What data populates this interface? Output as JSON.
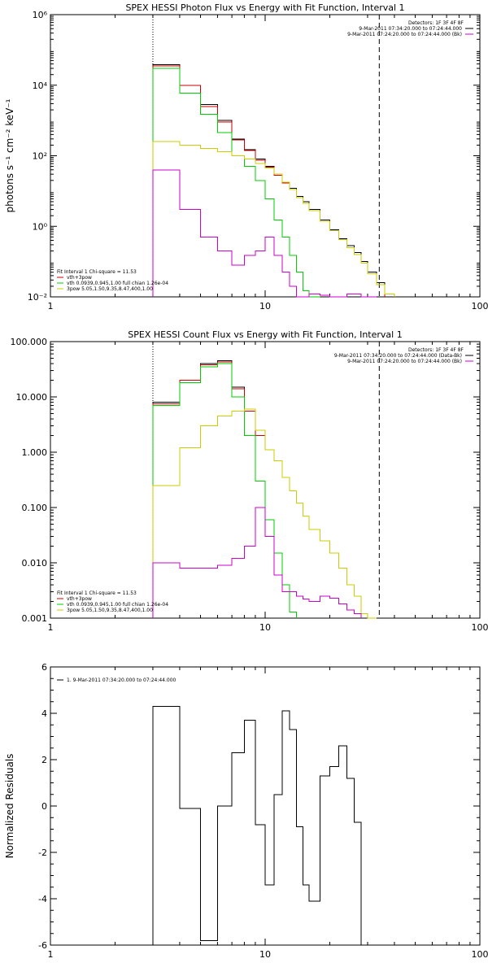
{
  "chart_data": [
    {
      "type": "line",
      "title": "SPEX HESSI Photon Flux vs Energy with Fit Function, Interval 1",
      "ylabel": "photons s⁻¹ cm⁻² keV⁻¹",
      "xlabel": "",
      "xscale": "log",
      "yscale": "log",
      "xlim": [
        1,
        100
      ],
      "ylim": [
        0.01,
        1000000
      ],
      "x_ticks": [
        1,
        10,
        100
      ],
      "x_tick_labels": [
        "1",
        "10",
        "100"
      ],
      "y_ticks": [
        0.01,
        1,
        100,
        10000,
        1000000
      ],
      "y_tick_labels": [
        "10⁻²",
        "10⁰",
        "10²",
        "10⁴",
        "10⁶"
      ],
      "vlines": [
        {
          "x": 3,
          "style": "dotted"
        },
        {
          "x": 34,
          "style": "dashed"
        }
      ],
      "detectors_label": "Detectors: 1F 3F 4F 8F",
      "legend_right": [
        {
          "text": "9-Mar-2011 07:34:20.000 to 07:24:44.000",
          "color": "#000000"
        },
        {
          "text": "9-Mar-2011 07:24:20.000 to 07:24:44.000 (Bk)",
          "color": "#cc00cc"
        }
      ],
      "legend_left": [
        {
          "text": "Fit Interval 1    Chi-square = 11.53",
          "color": "#000000"
        },
        {
          "text": "vth+3pow",
          "color": "#cc0000"
        },
        {
          "text": "vth 0.0939,0.945,1.00  full chian 1.26e-04",
          "color": "#00cc00"
        },
        {
          "text": "3pow 5.05,1.50,9.35,8.47,400,1.00",
          "color": "#cccc00"
        }
      ],
      "edges": [
        3.0,
        3.5,
        4.0,
        4.5,
        5.0,
        5.5,
        6.0,
        6.5,
        7.0,
        7.5,
        8.0,
        8.5,
        9.0,
        9.5,
        10.0,
        11.0,
        12.0,
        13.0,
        14.0,
        15.0,
        16.0,
        18.0,
        20.0,
        22.0,
        24.0,
        26.0,
        28.0,
        30.0,
        33.0,
        36.0,
        40.0
      ],
      "series": [
        {
          "color": "#000000",
          "values": [
            38000,
            38000,
            10000,
            10000,
            2800,
            2800,
            1000,
            1000,
            300,
            300,
            150,
            150,
            80,
            80,
            50,
            30,
            18,
            12,
            7,
            5,
            3,
            1.5,
            0.8,
            0.45,
            0.28,
            0.18,
            0.1,
            0.05,
            0.025,
            null
          ]
        },
        {
          "color": "#cc0000",
          "values": [
            35000,
            35000,
            10000,
            10000,
            2500,
            2500,
            900,
            900,
            280,
            280,
            140,
            140,
            75,
            75,
            48,
            28,
            17,
            11,
            6.5,
            4.5,
            2.8,
            1.4,
            0.75,
            0.42,
            0.25,
            0.16,
            0.09,
            0.045,
            0.022,
            null
          ]
        },
        {
          "color": "#00cc00",
          "values": [
            30000,
            30000,
            6000,
            6000,
            1500,
            1500,
            450,
            450,
            100,
            100,
            50,
            50,
            20,
            20,
            6,
            1.5,
            0.5,
            0.15,
            0.05,
            0.015,
            0.005,
            null,
            null,
            null,
            null,
            null,
            null,
            null,
            null,
            null
          ]
        },
        {
          "color": "#cccc00",
          "values": [
            250,
            250,
            200,
            200,
            160,
            160,
            130,
            130,
            100,
            100,
            80,
            80,
            60,
            60,
            45,
            30,
            18,
            11,
            6.5,
            4.5,
            2.8,
            1.4,
            0.75,
            0.42,
            0.25,
            0.16,
            0.09,
            0.045,
            0.022,
            0.012
          ]
        },
        {
          "color": "#cc00cc",
          "values": [
            40,
            40,
            3,
            3,
            0.5,
            0.5,
            0.2,
            0.2,
            0.08,
            0.08,
            0.15,
            0.15,
            0.2,
            0.2,
            0.5,
            0.15,
            0.05,
            0.02,
            0.01,
            0.01,
            0.012,
            0.011,
            0.01,
            0.009,
            0.012,
            0.012,
            0.01,
            0.008,
            null,
            null
          ]
        }
      ]
    },
    {
      "type": "line",
      "title": "SPEX HESSI Count Flux vs Energy with Fit Function, Interval 1",
      "ylabel": "",
      "xlabel": "",
      "xscale": "log",
      "yscale": "log",
      "xlim": [
        1,
        100
      ],
      "ylim": [
        0.001,
        100
      ],
      "x_ticks": [
        1,
        10,
        100
      ],
      "x_tick_labels": [
        "1",
        "10",
        "100"
      ],
      "y_ticks": [
        0.001,
        0.01,
        0.1,
        1,
        10,
        100
      ],
      "y_tick_labels": [
        "0.001",
        "0.010",
        "0.100",
        "1.000",
        "10.000",
        "100.000"
      ],
      "vlines": [
        {
          "x": 3,
          "style": "dotted"
        },
        {
          "x": 34,
          "style": "dashed"
        }
      ],
      "detectors_label": "Detectors: 1F 3F 4F 8F",
      "legend_right": [
        {
          "text": "9-Mar-2011 07:34:20.000 to 07:24:44.000 (Data-Bk)",
          "color": "#000000"
        },
        {
          "text": "9-Mar-2011 07:24:20.000 to 07:24:44.000 (Bk)",
          "color": "#cc00cc"
        }
      ],
      "legend_left": [
        {
          "text": "Fit Interval 1    Chi-square = 11.53",
          "color": "#000000"
        },
        {
          "text": "vth+3pow",
          "color": "#cc0000"
        },
        {
          "text": "vth 0.0939,0.945,1.00  full chian 1.26e-04",
          "color": "#00cc00"
        },
        {
          "text": "3pow 5.05,1.50,9.35,8.47,400,1.00",
          "color": "#cccc00"
        }
      ],
      "edges": [
        3.0,
        4.0,
        5.0,
        6.0,
        7.0,
        8.0,
        9.0,
        10.0,
        11.0,
        12.0,
        13.0,
        14.0,
        15.0,
        16.0,
        18.0,
        20.0,
        22.0,
        24.0,
        26.0,
        28.0,
        30.0,
        33.0,
        36.0,
        40.0
      ],
      "series": [
        {
          "color": "#000000",
          "values": [
            8,
            20,
            40,
            45,
            15,
            6,
            2,
            1.1,
            0.7,
            0.35,
            0.2,
            0.12,
            0.07,
            0.04,
            0.025,
            0.015,
            0.008,
            0.004,
            0.0025,
            0.0012,
            null,
            null,
            null
          ]
        },
        {
          "color": "#cc0000",
          "values": [
            7.5,
            20,
            38,
            43,
            14,
            5.5,
            2,
            1.1,
            0.7,
            0.35,
            0.2,
            0.12,
            0.07,
            0.04,
            0.025,
            0.015,
            0.008,
            0.004,
            0.0025,
            0.0012,
            null,
            null,
            null
          ]
        },
        {
          "color": "#00cc00",
          "values": [
            7,
            18,
            35,
            40,
            10,
            2,
            0.3,
            0.06,
            0.015,
            0.004,
            0.0013,
            null,
            null,
            null,
            null,
            null,
            null,
            null,
            null,
            null,
            null,
            null,
            null
          ]
        },
        {
          "color": "#cccc00",
          "values": [
            0.25,
            1.2,
            3,
            4.5,
            5.5,
            6,
            2.5,
            1.1,
            0.7,
            0.35,
            0.2,
            0.12,
            0.07,
            0.04,
            0.025,
            0.015,
            0.008,
            0.004,
            0.0025,
            0.0012,
            0.0007,
            null,
            null
          ]
        },
        {
          "color": "#cc00cc",
          "values": [
            0.01,
            0.008,
            0.008,
            0.009,
            0.012,
            0.02,
            0.1,
            0.03,
            0.006,
            0.003,
            0.003,
            0.0025,
            0.0022,
            0.002,
            0.0025,
            0.0023,
            0.0018,
            0.0014,
            0.0012,
            null,
            null,
            null,
            null
          ]
        }
      ]
    },
    {
      "type": "line",
      "title": "",
      "ylabel": "Normalized Residuals",
      "xlabel": "",
      "xscale": "log",
      "yscale": "linear",
      "xlim": [
        1,
        100
      ],
      "ylim": [
        -6,
        6
      ],
      "x_ticks": [
        1,
        10,
        100
      ],
      "x_tick_labels": [
        "1",
        "10",
        "100"
      ],
      "y_ticks": [
        -6,
        -4,
        -2,
        0,
        2,
        4,
        6
      ],
      "y_tick_labels": [
        "-6",
        "-4",
        "-2",
        "0",
        "2",
        "4",
        "6"
      ],
      "legend_left": [
        {
          "text": "1. 9-Mar-2011 07:34:20.000 to 07:24:44.000",
          "color": "#000000"
        }
      ],
      "edges": [
        3.0,
        4.0,
        5.0,
        6.0,
        7.0,
        8.0,
        9.0,
        10.0,
        11.0,
        12.0,
        13.0,
        14.0,
        15.0,
        16.0,
        18.0,
        20.0,
        22.0,
        24.0,
        26.0,
        28.0,
        30.0,
        33.0
      ],
      "series": [
        {
          "color": "#000000",
          "values": [
            4.3,
            -0.1,
            -5.8,
            0.0,
            2.3,
            3.7,
            -0.8,
            -3.4,
            0.5,
            4.1,
            3.3,
            -0.9,
            -3.4,
            -4.1,
            1.3,
            1.7,
            2.6,
            1.2,
            -0.7,
            -6.0,
            null
          ]
        }
      ]
    }
  ]
}
